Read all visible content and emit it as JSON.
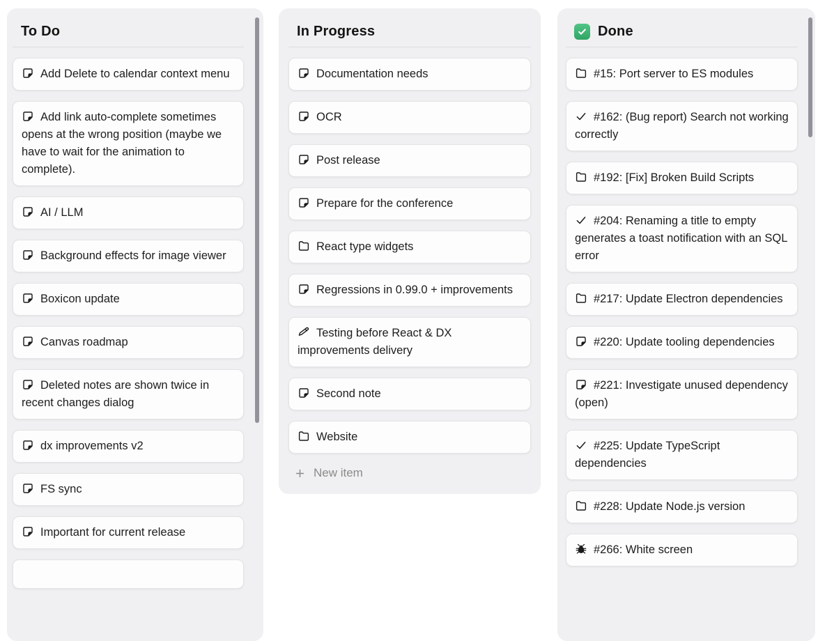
{
  "board": {
    "columns": [
      {
        "id": "todo",
        "title": "To Do",
        "items": [
          {
            "icon": "note",
            "text": "Add Delete to calendar context menu"
          },
          {
            "icon": "note",
            "text": "Add link auto-complete sometimes opens at the wrong position (maybe we have to wait for the animation to complete)."
          },
          {
            "icon": "note",
            "text": "AI / LLM"
          },
          {
            "icon": "note",
            "text": "Background effects for image viewer"
          },
          {
            "icon": "note",
            "text": "Boxicon update"
          },
          {
            "icon": "note",
            "text": "Canvas roadmap"
          },
          {
            "icon": "note",
            "text": "Deleted notes are shown twice in recent changes dialog"
          },
          {
            "icon": "note",
            "text": "dx improvements v2"
          },
          {
            "icon": "note",
            "text": "FS sync"
          },
          {
            "icon": "note",
            "text": "Important for current release"
          }
        ]
      },
      {
        "id": "in-progress",
        "title": "In Progress",
        "new_item_label": "New item",
        "items": [
          {
            "icon": "note",
            "text": "Documentation needs"
          },
          {
            "icon": "note",
            "text": "OCR"
          },
          {
            "icon": "note",
            "text": "Post release"
          },
          {
            "icon": "note",
            "text": "Prepare for the conference"
          },
          {
            "icon": "folder",
            "text": "React type widgets"
          },
          {
            "icon": "note",
            "text": "Regressions in 0.99.0 + improvements"
          },
          {
            "icon": "pencil",
            "text": "Testing before React & DX improvements delivery"
          },
          {
            "icon": "note",
            "text": "Second note"
          },
          {
            "icon": "folder",
            "text": "Website"
          }
        ]
      },
      {
        "id": "done",
        "title": "Done",
        "header_icon": "checkbox-checked",
        "items": [
          {
            "icon": "folder",
            "text": "#15: Port server to ES modules"
          },
          {
            "icon": "check",
            "text": "#162: (Bug report) Search not working correctly"
          },
          {
            "icon": "folder",
            "text": "#192: [Fix] Broken Build Scripts"
          },
          {
            "icon": "check",
            "text": "#204: Renaming a title to empty generates a toast notification with an SQL error"
          },
          {
            "icon": "folder",
            "text": "#217: Update Electron dependencies"
          },
          {
            "icon": "note",
            "text": "#220: Update tooling dependencies"
          },
          {
            "icon": "note",
            "text": "#221: Investigate unused dependency (open)"
          },
          {
            "icon": "check",
            "text": "#225: Update TypeScript dependencies"
          },
          {
            "icon": "folder",
            "text": "#228: Update Node.js version"
          },
          {
            "icon": "bug",
            "text": "#266: White screen"
          }
        ]
      }
    ]
  },
  "colors": {
    "column_background": "#f0eff1",
    "card_background": "#fdfdfe",
    "done_checkbox_green_top": "#52c587",
    "done_checkbox_green_bottom": "#2fa564",
    "scrollbar_thumb": "#93919a",
    "muted_text": "#8b8b8b"
  }
}
